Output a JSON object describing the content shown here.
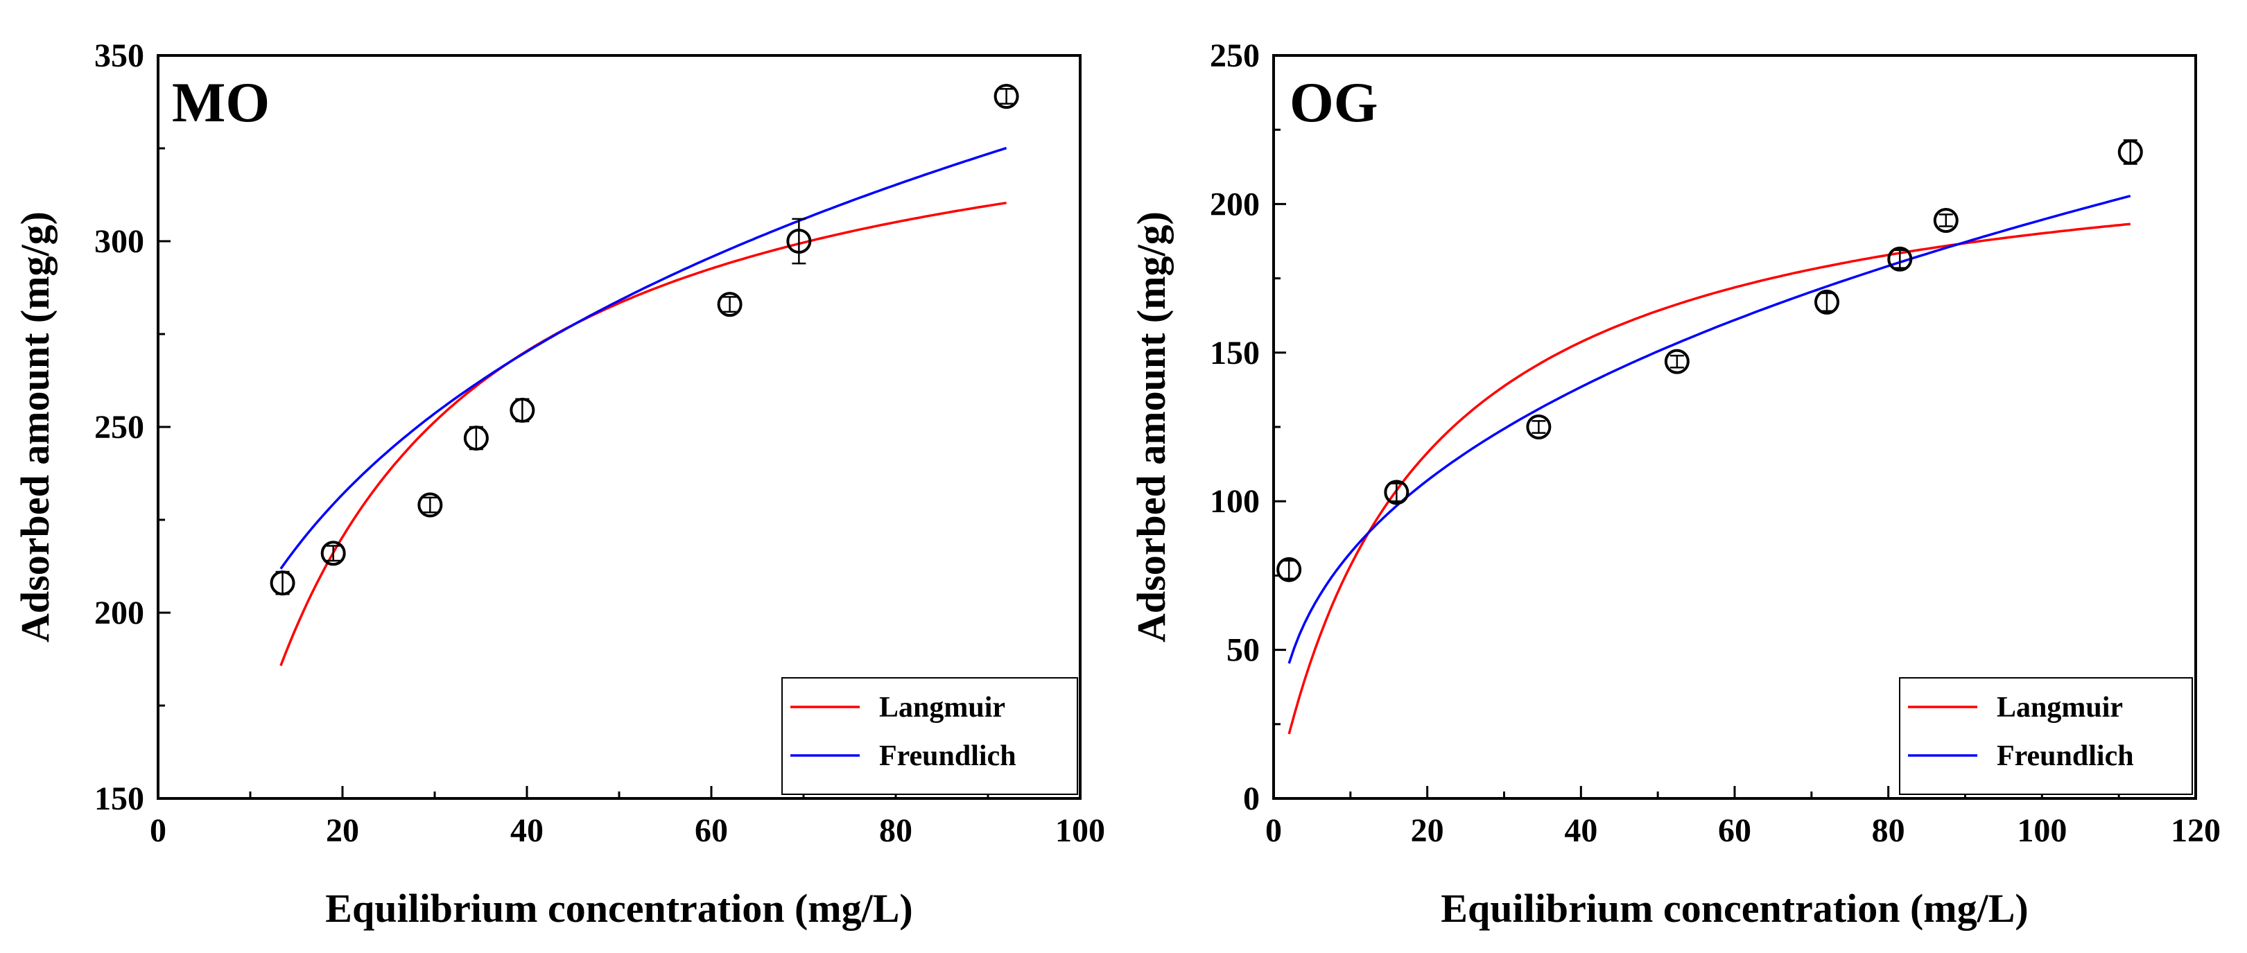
{
  "figure": {
    "background": "#ffffff"
  },
  "colors": {
    "langmuir": "#ff0000",
    "freundlich": "#0000ff",
    "axis": "#000000",
    "marker": "#000000"
  },
  "chart_data": [
    {
      "type": "scatter",
      "panel_label": "MO",
      "xlabel": "Equilibrium concentration (mg/L)",
      "ylabel": "Adsorbed amount (mg/g)",
      "xlim": [
        0,
        100
      ],
      "ylim": [
        150,
        350
      ],
      "xticks": [
        0,
        20,
        40,
        60,
        80,
        100
      ],
      "yticks": [
        150,
        200,
        250,
        300,
        350
      ],
      "x_tick_labels": [
        "0",
        "20",
        "40",
        "60",
        "80",
        "100"
      ],
      "y_tick_labels": [
        "150",
        "200",
        "250",
        "300",
        "350"
      ],
      "grid": false,
      "legend_position": "bottom-right",
      "points": [
        {
          "x": 13.5,
          "y": 208,
          "err": 3
        },
        {
          "x": 19,
          "y": 216,
          "err": 2
        },
        {
          "x": 29.5,
          "y": 229,
          "err": 2
        },
        {
          "x": 34.5,
          "y": 247,
          "err": 3
        },
        {
          "x": 39.5,
          "y": 254.5,
          "err": 3
        },
        {
          "x": 62,
          "y": 283,
          "err": 2
        },
        {
          "x": 69.5,
          "y": 300,
          "err": 6
        },
        {
          "x": 92,
          "y": 339,
          "err": 2
        }
      ],
      "series": [
        {
          "name": "Langmuir",
          "color": "#ff0000",
          "model": "langmuir",
          "x_range": [
            13.3,
            92
          ],
          "params": {
            "qm": 350,
            "KL": 0.085
          }
        },
        {
          "name": "Freundlich",
          "color": "#0000ff",
          "model": "freundlich",
          "x_range": [
            13.3,
            92
          ],
          "params": {
            "KF": 119.4,
            "n": 0.2215
          }
        }
      ]
    },
    {
      "type": "scatter",
      "panel_label": "OG",
      "xlabel": "Equilibrium concentration (mg/L)",
      "ylabel": "Adsorbed amount (mg/g)",
      "xlim": [
        0,
        120
      ],
      "ylim": [
        0,
        250
      ],
      "xticks": [
        0,
        20,
        40,
        60,
        80,
        100,
        120
      ],
      "yticks": [
        0,
        50,
        100,
        150,
        200,
        250
      ],
      "x_tick_labels": [
        "0",
        "20",
        "40",
        "60",
        "80",
        "100",
        "120"
      ],
      "y_tick_labels": [
        "0",
        "50",
        "100",
        "150",
        "200",
        "250"
      ],
      "grid": false,
      "legend_position": "bottom-right",
      "points": [
        {
          "x": 2,
          "y": 77,
          "err": 3
        },
        {
          "x": 16,
          "y": 103,
          "err": 3
        },
        {
          "x": 34.5,
          "y": 125,
          "err": 2
        },
        {
          "x": 52.5,
          "y": 147,
          "err": 2
        },
        {
          "x": 72,
          "y": 167,
          "err": 3
        },
        {
          "x": 81.5,
          "y": 181.5,
          "err": 3
        },
        {
          "x": 87.5,
          "y": 194.5,
          "err": 2
        },
        {
          "x": 111.5,
          "y": 217.5,
          "err": 4
        }
      ],
      "series": [
        {
          "name": "Langmuir",
          "color": "#ff0000",
          "model": "langmuir",
          "x_range": [
            2,
            111.5
          ],
          "params": {
            "qm": 226,
            "KL": 0.053
          }
        },
        {
          "name": "Freundlich",
          "color": "#0000ff",
          "model": "freundlich",
          "x_range": [
            2,
            111.5
          ],
          "params": {
            "KF": 35.1,
            "n": 0.372
          }
        }
      ]
    }
  ]
}
